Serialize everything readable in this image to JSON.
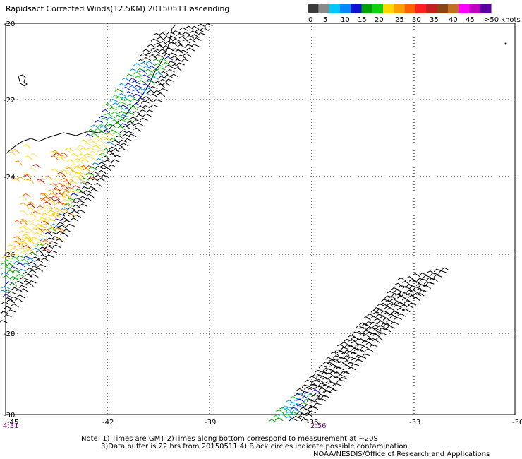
{
  "title": "Rapidsact Corrected Winds(12.5KM) 20150511 ascending",
  "legend": {
    "colors": [
      "#3a3a3a",
      "#8a8a8a",
      "#00c8ff",
      "#0088ff",
      "#1010d0",
      "#00a000",
      "#10d010",
      "#ffd800",
      "#ffa000",
      "#ff6000",
      "#ff2020",
      "#c02020",
      "#8b4513",
      "#c07020",
      "#ff00ff",
      "#c000c0",
      "#5a00a0"
    ],
    "labels": [
      "0",
      "5",
      "10",
      "15",
      "20",
      "25",
      "30",
      "35",
      "40",
      "45",
      ">50 knots"
    ]
  },
  "x_axis": {
    "labels": [
      "-45",
      "-42",
      "-39",
      "-36",
      "-33",
      "-30"
    ]
  },
  "y_axis": {
    "labels": [
      "-20",
      "-22",
      "-24",
      "-26",
      "-28",
      "-30"
    ]
  },
  "times": {
    "left": "4:31",
    "mid": "2:56"
  },
  "notes": {
    "line1": "Note: 1) Times are GMT 2)Times along bottom correspond to measurement at ~20S",
    "line2": "3)Data buffer is 22 hrs from 20150511 4) Black circles indicate possible contamination",
    "line3": "NOAA/NESDIS/Office of Research and Applications"
  }
}
